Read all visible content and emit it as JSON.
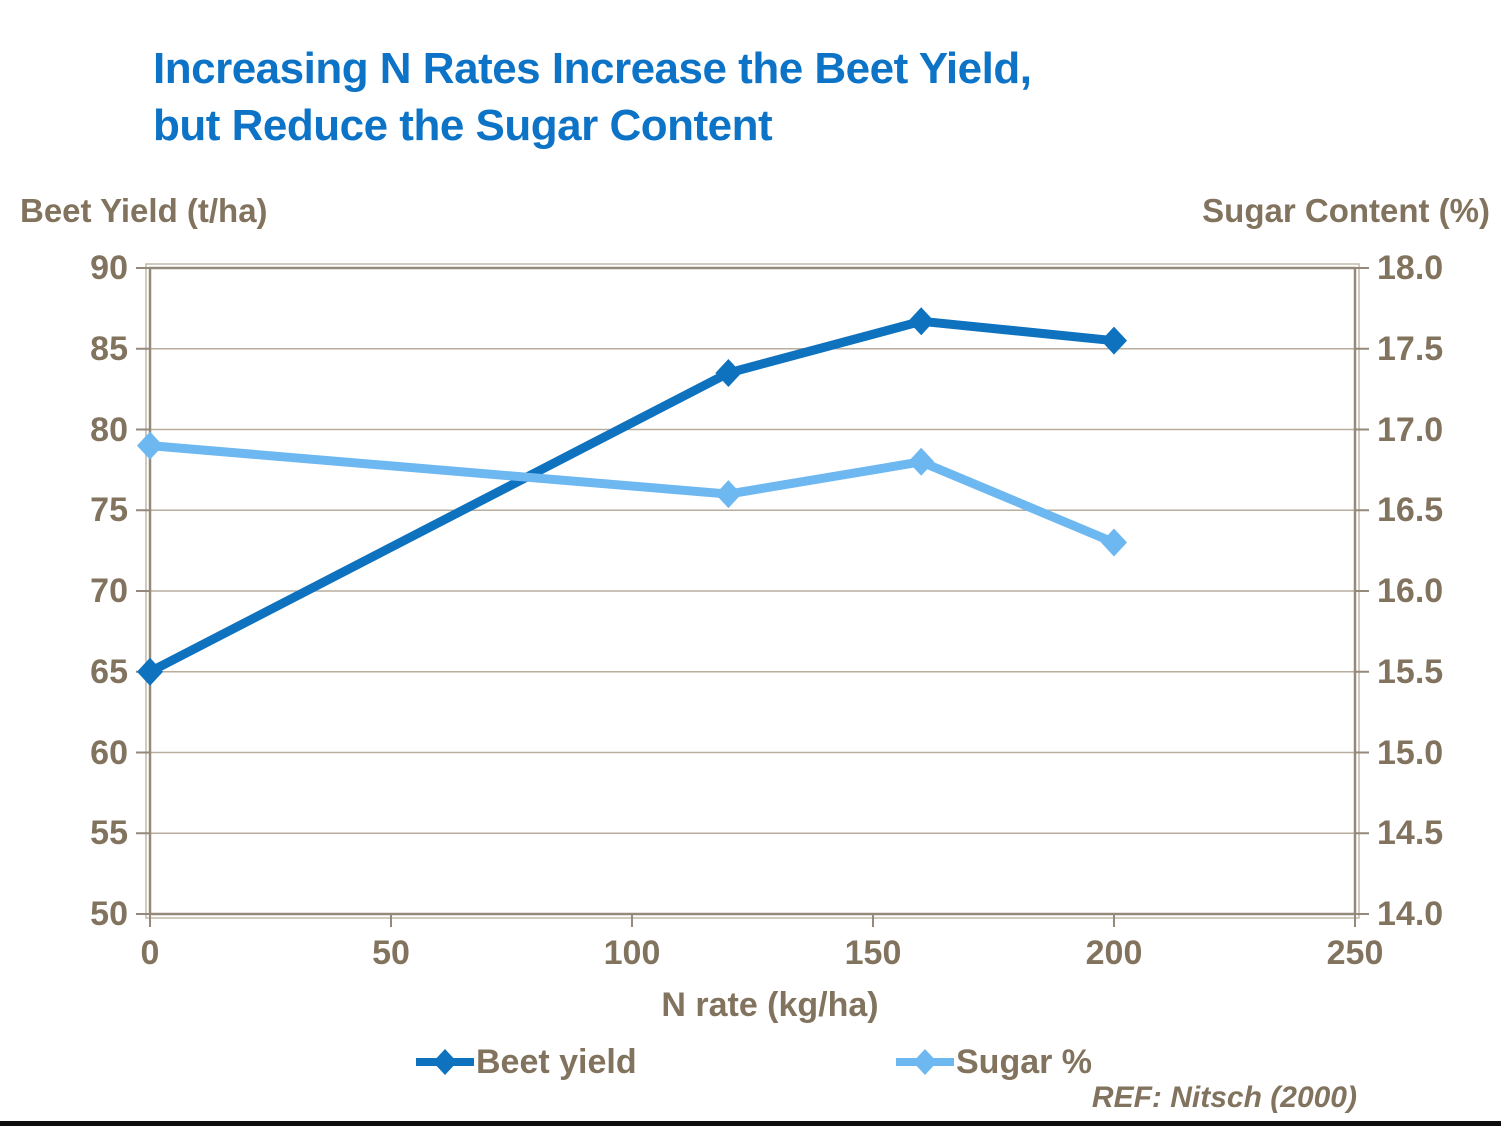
{
  "page": {
    "title_line1": "Increasing N Rates Increase the Beet Yield,",
    "title_line2": "but Reduce the Sugar Content",
    "reference": "REF: Nitsch (2000)"
  },
  "colors": {
    "title_blue": "#0c73c6",
    "beet_line": "#0e72bf",
    "sugar_line": "#6eb8f2",
    "axis_text": "#82735e",
    "gridline": "#b9ae9d",
    "axis_line": "#94897b",
    "axis_bevel": "#c2b8a8",
    "bottom_bar": "#0d0d0d"
  },
  "chart_data": {
    "type": "line",
    "x": [
      0,
      120,
      160,
      200
    ],
    "series": [
      {
        "name": "Beet yield",
        "axis": "left",
        "color": "#0e72bf",
        "values": [
          65.0,
          83.5,
          86.7,
          85.5
        ]
      },
      {
        "name": "Sugar %",
        "axis": "right",
        "color": "#6eb8f2",
        "values": [
          16.9,
          16.6,
          16.8,
          16.3
        ]
      }
    ],
    "xlabel": "N rate (kg/ha)",
    "x_axis": {
      "min": 0,
      "max": 250,
      "tick_values": [
        0,
        50,
        100,
        150,
        200,
        250
      ],
      "tick_labels": [
        "0",
        "50",
        "100",
        "150",
        "200",
        "250"
      ]
    },
    "left_axis": {
      "header": "Beet Yield (t/ha)",
      "min": 50,
      "max": 90,
      "tick_values": [
        90,
        85,
        80,
        75,
        70,
        65,
        60,
        55,
        50
      ],
      "tick_labels": [
        "90",
        "85",
        "80",
        "75",
        "70",
        "65",
        "60",
        "55",
        "50"
      ]
    },
    "right_axis": {
      "header": "Sugar Content (%)",
      "min": 14,
      "max": 18,
      "tick_values": [
        18.0,
        17.5,
        17.0,
        16.5,
        16.0,
        15.5,
        15.0,
        14.5,
        14.0
      ],
      "tick_labels": [
        "18.0",
        "17.5",
        "17.0",
        "16.5",
        "16.0",
        "15.5",
        "15.0",
        "14.5",
        "14.0"
      ]
    },
    "grid": true,
    "legend_position": "bottom",
    "marker": "diamond"
  }
}
